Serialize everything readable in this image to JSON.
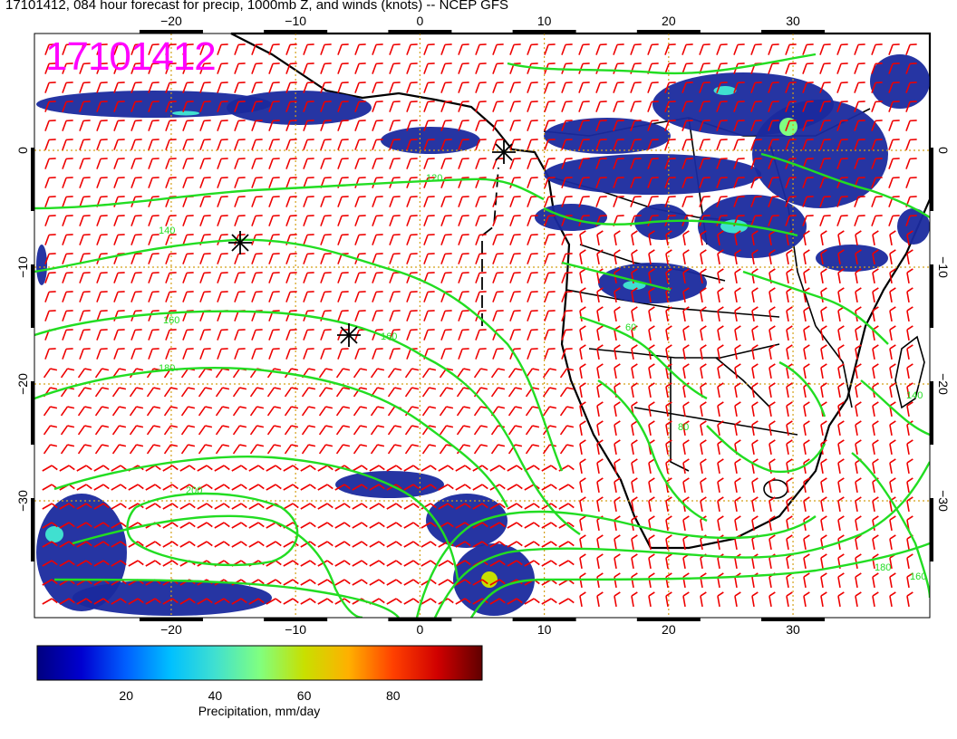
{
  "title": "17101412, 084 hour forecast for precip, 1000mb Z, and winds (knots) -- NCEP GFS",
  "stamp": "17101412",
  "axes": {
    "lon_ticks": [
      -20,
      -10,
      0,
      10,
      20,
      30
    ],
    "lon_labels": [
      "−20",
      "−10",
      "0",
      "10",
      "20",
      "30"
    ],
    "lat_ticks": [
      0,
      -10,
      -20,
      -30
    ],
    "lat_labels": [
      "0",
      "−10",
      "−20",
      "−30"
    ],
    "lon_range": [
      -31,
      41
    ],
    "lat_range": [
      -40,
      10
    ]
  },
  "colorbar": {
    "label": "Precipitation, mm/day",
    "ticks": [
      20,
      40,
      60,
      80
    ],
    "tick_labels": [
      "20",
      "40",
      "60",
      "80"
    ],
    "range": [
      0,
      100
    ],
    "colors": [
      "#000080",
      "#0000d0",
      "#0060ff",
      "#00c0ff",
      "#40e0d0",
      "#80ff80",
      "#c8e000",
      "#ffb000",
      "#ff4000",
      "#d00000",
      "#600000"
    ]
  },
  "contour_labels": [
    "120",
    "140",
    "160",
    "180",
    "200",
    "60",
    "80",
    "140",
    "160",
    "180",
    "160"
  ],
  "colors": {
    "precip": "#1a2a9e",
    "contour": "#22dd22",
    "barb": "#ee0000",
    "grid": "#d4a017",
    "stamp": "#ff00ff"
  }
}
